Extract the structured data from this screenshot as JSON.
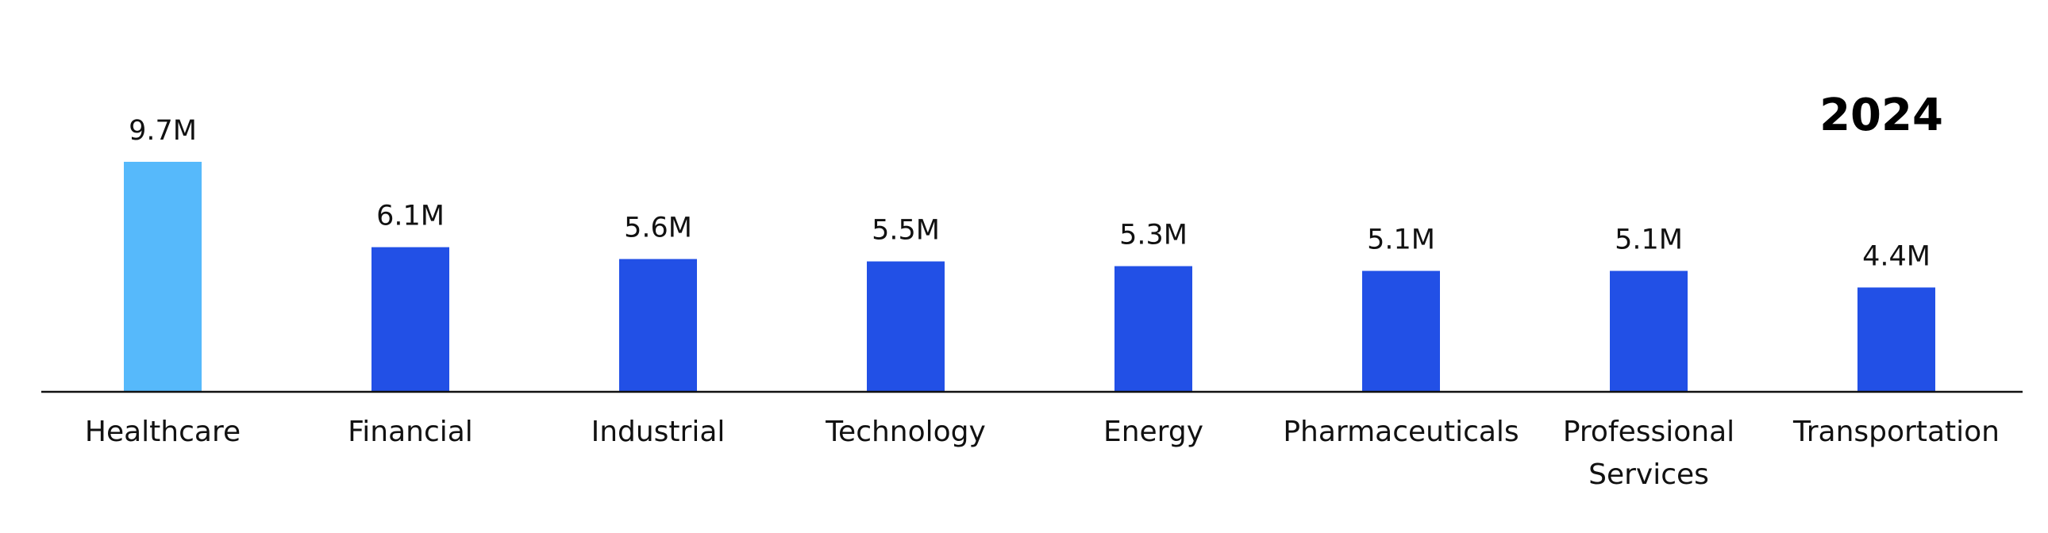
{
  "chart_data": {
    "type": "bar",
    "title": "2024",
    "categories": [
      [
        "Healthcare"
      ],
      [
        "Financial"
      ],
      [
        "Industrial"
      ],
      [
        "Technology"
      ],
      [
        "Energy"
      ],
      [
        "Pharmaceuticals"
      ],
      [
        "Professional",
        "Services"
      ],
      [
        "Transportation"
      ]
    ],
    "values": [
      9.7,
      6.1,
      5.6,
      5.5,
      5.3,
      5.1,
      5.1,
      4.4
    ],
    "data_labels": [
      "9.7M",
      "6.1M",
      "5.6M",
      "5.5M",
      "5.3M",
      "5.1M",
      "5.1M",
      "4.4M"
    ],
    "xlabel": "",
    "ylabel": "",
    "ylim": [
      0,
      9.7
    ],
    "grid": false,
    "legend": "none",
    "colors": {
      "highlight": "#56b9fb",
      "default": "#2250e6",
      "axis": "#111111"
    },
    "highlight_index": 0
  }
}
